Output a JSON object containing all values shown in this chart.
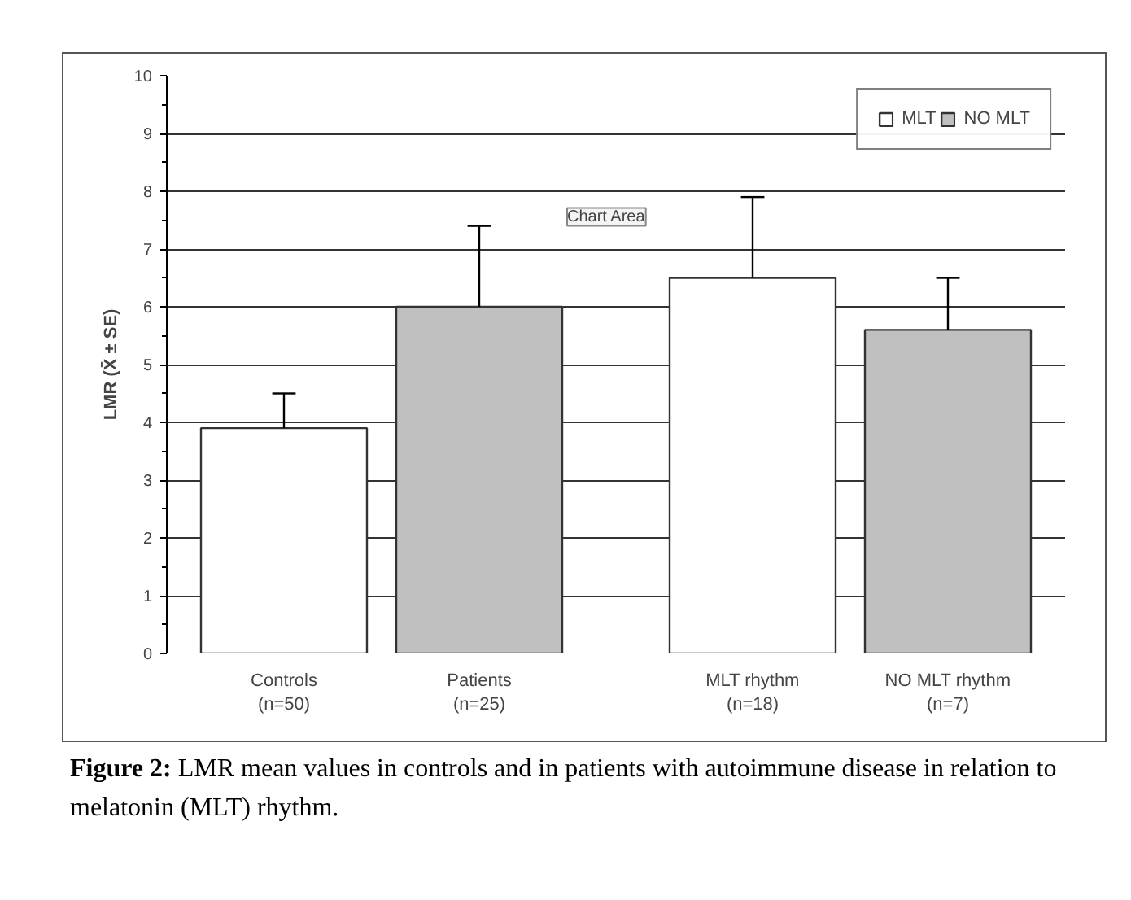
{
  "chart_data": {
    "type": "bar",
    "ylabel": "LMR (X̄ ± SE)",
    "categories": [
      "Controls\n(n=50)",
      "Patients\n(n=25)",
      "MLT rhythm\n(n=18)",
      "NO MLT rhythm\n(n=7)"
    ],
    "series": [
      {
        "name": "MLT",
        "color": "#ffffff",
        "values": [
          3.9,
          null,
          6.5,
          null
        ],
        "errors": [
          [
            3.9,
            4.5
          ],
          null,
          [
            6.5,
            7.9
          ],
          null
        ]
      },
      {
        "name": "NO MLT",
        "color": "#c0c0c0",
        "values": [
          null,
          6.0,
          null,
          5.6
        ],
        "errors": [
          null,
          [
            6.0,
            7.4
          ],
          null,
          [
            5.6,
            6.5
          ]
        ]
      }
    ],
    "ylim": [
      0,
      10
    ],
    "yticks": [
      0,
      1,
      2,
      3,
      4,
      5,
      6,
      7,
      8,
      9,
      10
    ],
    "grid": "y",
    "legend": "top right",
    "annotations": [
      "Chart Area",
      "Figure 2: LMR mean values in controls and in patients with autoimmune disease in relation to melatonin (MLT) rhythm."
    ]
  }
}
